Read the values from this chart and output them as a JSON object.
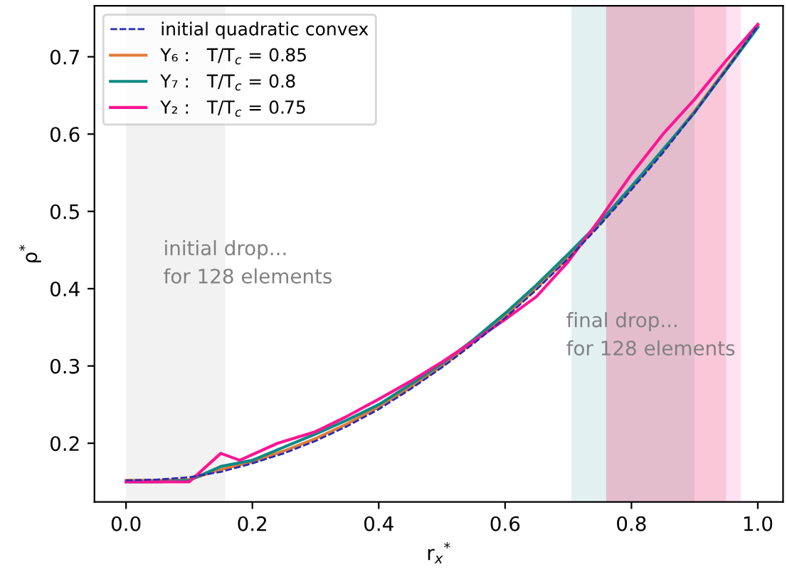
{
  "chart_data": {
    "type": "line",
    "xlabel": "r$_{x}$$^{*}$",
    "ylabel": "ρ$^{*}$",
    "xlim": [
      -0.05,
      1.04
    ],
    "ylim": [
      0.124,
      0.766
    ],
    "xticks": [
      {
        "value": 0,
        "label": "0.0"
      },
      0.2,
      0.4,
      0.6,
      0.8,
      {
        "value": 1,
        "label": "1.0"
      }
    ],
    "yticks": [
      0.2,
      0.3,
      0.4,
      0.5,
      0.6,
      0.7
    ],
    "grid": false,
    "legend": "top left",
    "series": [
      {
        "name": "initial quadratic convex",
        "color": "#2b2bb0",
        "line_style": "dashed",
        "x": [
          0,
          0.05,
          0.1,
          0.15,
          0.2,
          0.25,
          0.3,
          0.35,
          0.4,
          0.45,
          0.5,
          0.55,
          0.6,
          0.65,
          0.7,
          0.75,
          0.8,
          0.85,
          0.9,
          0.95,
          1.0
        ],
        "values": [
          0.152,
          0.153,
          0.156,
          0.163,
          0.174,
          0.187,
          0.203,
          0.222,
          0.244,
          0.27,
          0.298,
          0.329,
          0.362,
          0.399,
          0.439,
          0.482,
          0.528,
          0.576,
          0.628,
          0.683,
          0.74
        ]
      },
      {
        "name": "Y₆ :   T/T$_{c}$ = 0.85",
        "color": "#e07b39",
        "line_style": "solid",
        "x": [
          0,
          0.05,
          0.1,
          0.15,
          0.2,
          0.25,
          0.3,
          0.35,
          0.4,
          0.45,
          0.5,
          0.55,
          0.6,
          0.65,
          0.7,
          0.75,
          0.8,
          0.85,
          0.9,
          0.95,
          1.0
        ],
        "values": [
          0.152,
          0.152,
          0.153,
          0.166,
          0.176,
          0.19,
          0.206,
          0.225,
          0.247,
          0.272,
          0.3,
          0.331,
          0.364,
          0.401,
          0.441,
          0.484,
          0.53,
          0.578,
          0.63,
          0.685,
          0.74
        ]
      },
      {
        "name": "Y₇ :   T/T$_{c}$ = 0.8",
        "color": "#0e8a84",
        "line_style": "solid",
        "x": [
          0,
          0.05,
          0.1,
          0.15,
          0.2,
          0.25,
          0.3,
          0.35,
          0.4,
          0.45,
          0.5,
          0.55,
          0.6,
          0.65,
          0.7,
          0.75,
          0.8,
          0.85,
          0.9,
          0.95,
          1.0
        ],
        "values": [
          0.15,
          0.15,
          0.152,
          0.17,
          0.178,
          0.195,
          0.212,
          0.23,
          0.25,
          0.276,
          0.303,
          0.334,
          0.368,
          0.405,
          0.445,
          0.486,
          0.532,
          0.58,
          0.628,
          0.683,
          0.738
        ]
      },
      {
        "name": "Y₂ :   T/T$_{c}$ = 0.75",
        "color": "#ff1493",
        "line_style": "solid",
        "x": [
          0,
          0.05,
          0.1,
          0.15,
          0.18,
          0.24,
          0.3,
          0.35,
          0.4,
          0.45,
          0.5,
          0.55,
          0.6,
          0.65,
          0.7,
          0.75,
          0.8,
          0.85,
          0.9,
          0.95,
          1.0
        ],
        "values": [
          0.15,
          0.15,
          0.15,
          0.187,
          0.178,
          0.2,
          0.215,
          0.235,
          0.257,
          0.28,
          0.305,
          0.332,
          0.36,
          0.39,
          0.435,
          0.49,
          0.548,
          0.6,
          0.645,
          0.695,
          0.742
        ]
      }
    ],
    "bands": [
      {
        "axis": "x",
        "from": 0.0,
        "to": 0.157,
        "color": "#d9d9d9",
        "label": null
      },
      {
        "axis": "x",
        "from": 0.705,
        "to": 0.9,
        "color": "#0e8a84",
        "label": null
      },
      {
        "axis": "x",
        "from": 0.76,
        "to": 0.95,
        "color": "#e0393f",
        "label": null
      },
      {
        "axis": "x",
        "from": 0.76,
        "to": 0.973,
        "color": "#ff1493",
        "label": null
      }
    ],
    "annotations": [
      "initial drop...\nfor 128 elements",
      "final drop...\nfor 128 elements"
    ]
  }
}
